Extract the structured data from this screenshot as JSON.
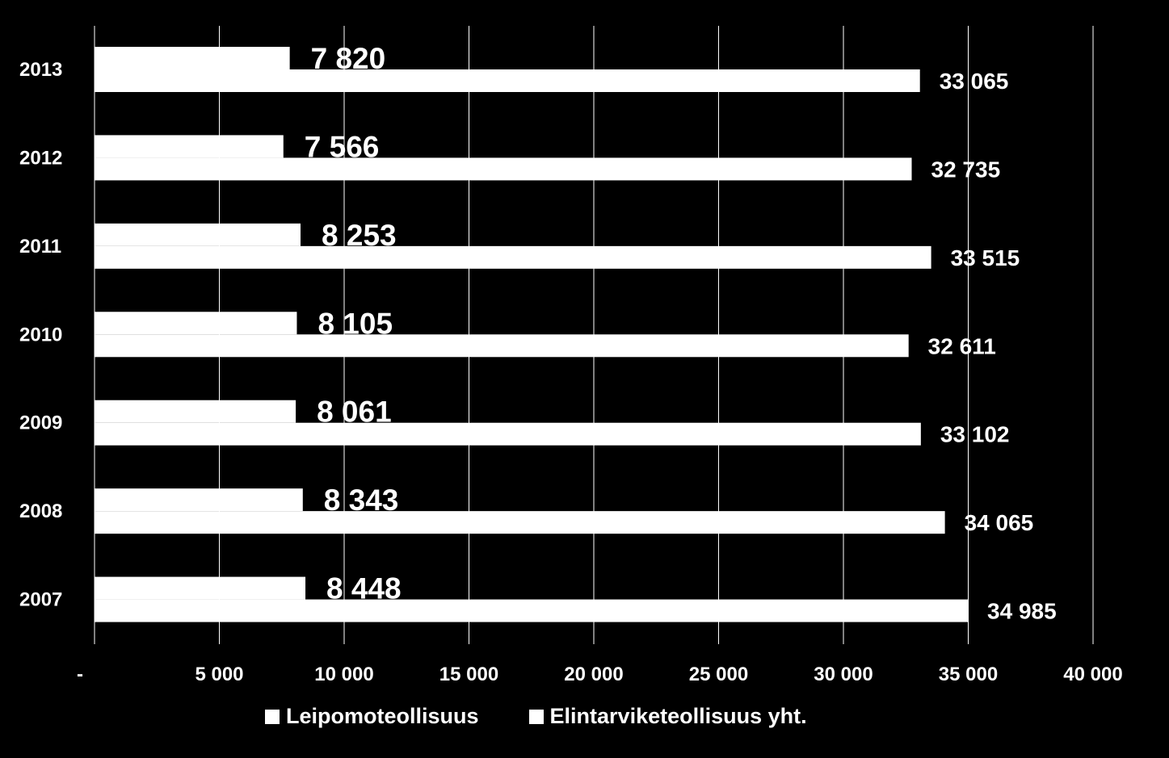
{
  "chart_data": {
    "type": "bar",
    "orientation": "horizontal",
    "categories": [
      "2013",
      "2012",
      "2011",
      "2010",
      "2009",
      "2008",
      "2007"
    ],
    "series": [
      {
        "name": "Leipomoteollisuus",
        "values": [
          7820,
          7566,
          8253,
          8105,
          8061,
          8343,
          8448
        ],
        "labels": [
          "7 820",
          "7 566",
          "8 253",
          "8 105",
          "8 061",
          "8 343",
          "8 448"
        ]
      },
      {
        "name": "Elintarviketeollisuus yht.",
        "values": [
          33065,
          32735,
          33515,
          32611,
          33102,
          34065,
          34985
        ],
        "labels": [
          "33 065",
          "32 735",
          "33 515",
          "32 611",
          "33 102",
          "34 065",
          "34 985"
        ]
      }
    ],
    "xlim": [
      0,
      40000
    ],
    "xticks": [
      0,
      5000,
      10000,
      15000,
      20000,
      25000,
      30000,
      35000,
      40000
    ],
    "xtick_labels": [
      "-",
      "5 000",
      "10 000",
      "15 000",
      "20 000",
      "25 000",
      "30 000",
      "35 000",
      "40 000"
    ],
    "grid": "vertical",
    "legend_position": "bottom",
    "colors": {
      "background": "#000000",
      "bars": "#ffffff",
      "text": "#ffffff",
      "grid": "#ffffff"
    }
  }
}
